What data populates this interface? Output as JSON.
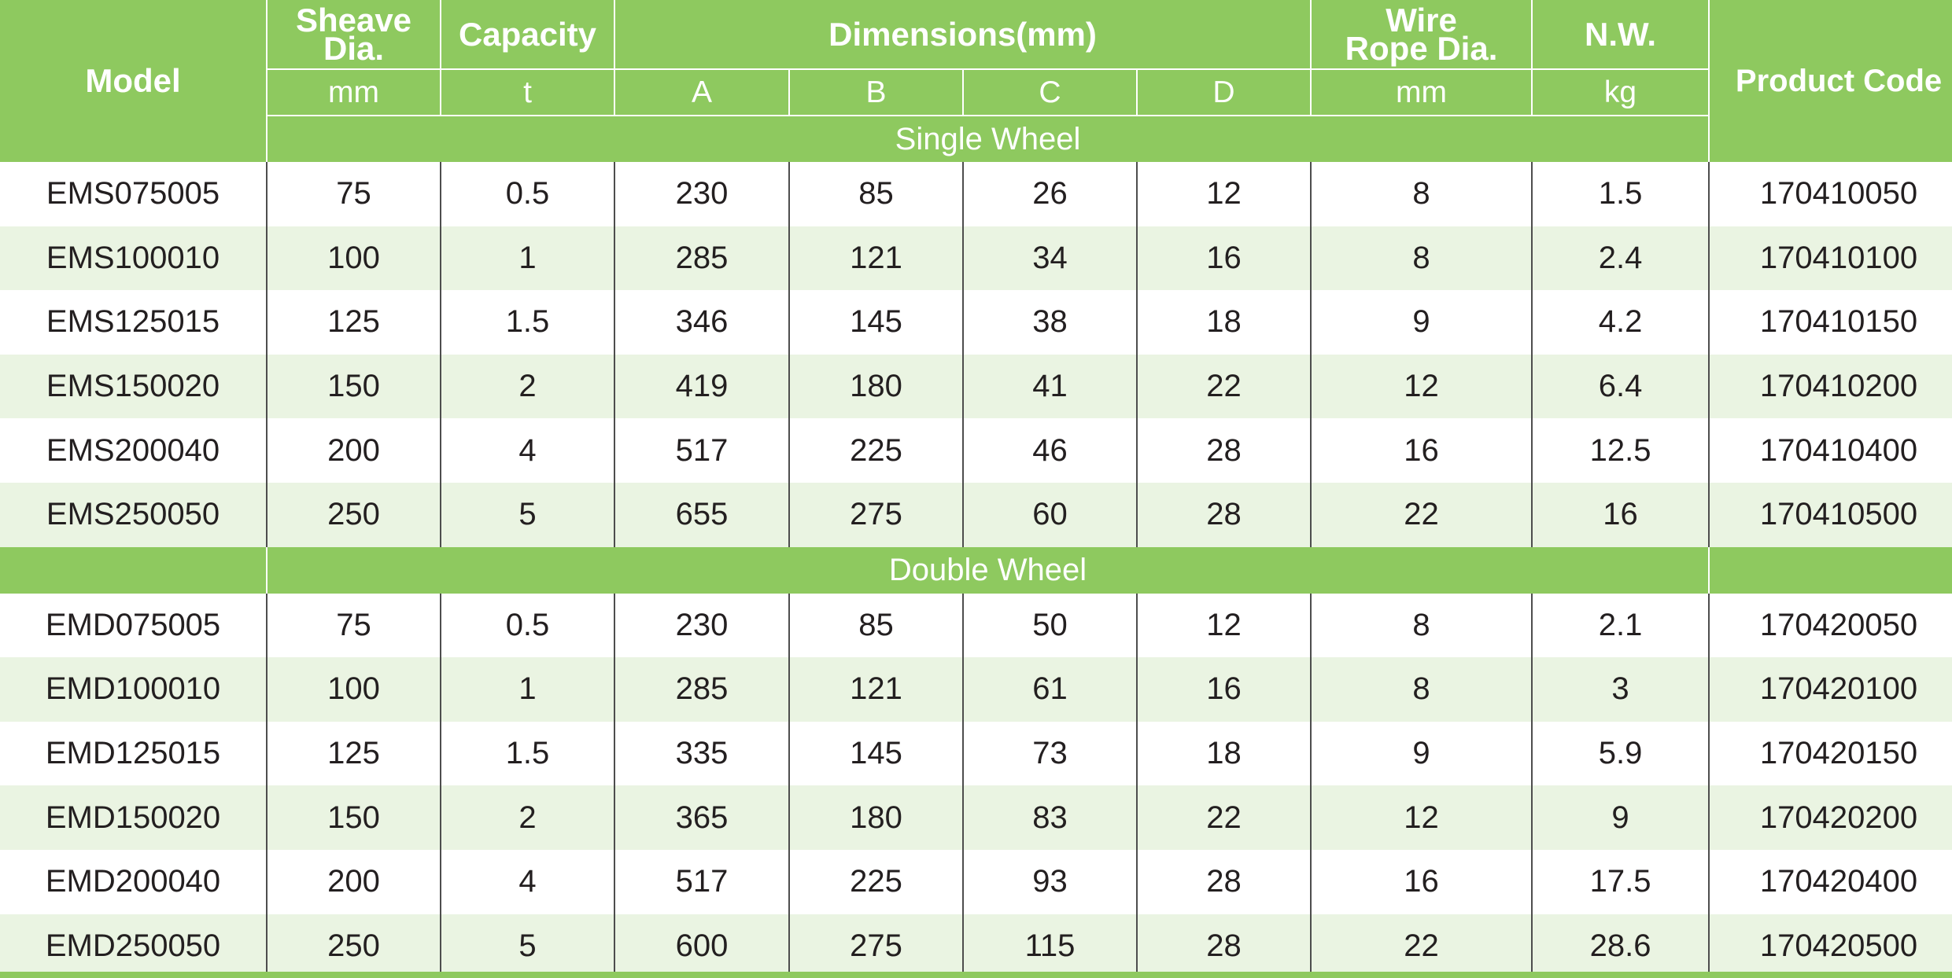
{
  "header": {
    "model": "Model",
    "sheave_top": "Sheave",
    "sheave_bottom": "Dia.",
    "capacity": "Capacity",
    "dimensions": "Dimensions(mm)",
    "wire_top": "Wire",
    "wire_bottom": "Rope Dia.",
    "nw": "N.W.",
    "product_code": "Product Code",
    "units": {
      "sheave": "mm",
      "capacity": "t",
      "a": "A",
      "b": "B",
      "c": "C",
      "d": "D",
      "wire": "mm",
      "nw": "kg"
    }
  },
  "sections": [
    {
      "title": "Single Wheel",
      "rows": [
        [
          "EMS075005",
          "75",
          "0.5",
          "230",
          "85",
          "26",
          "12",
          "8",
          "1.5",
          "170410050"
        ],
        [
          "EMS100010",
          "100",
          "1",
          "285",
          "121",
          "34",
          "16",
          "8",
          "2.4",
          "170410100"
        ],
        [
          "EMS125015",
          "125",
          "1.5",
          "346",
          "145",
          "38",
          "18",
          "9",
          "4.2",
          "170410150"
        ],
        [
          "EMS150020",
          "150",
          "2",
          "419",
          "180",
          "41",
          "22",
          "12",
          "6.4",
          "170410200"
        ],
        [
          "EMS200040",
          "200",
          "4",
          "517",
          "225",
          "46",
          "28",
          "16",
          "12.5",
          "170410400"
        ],
        [
          "EMS250050",
          "250",
          "5",
          "655",
          "275",
          "60",
          "28",
          "22",
          "16",
          "170410500"
        ]
      ]
    },
    {
      "title": "Double Wheel",
      "rows": [
        [
          "EMD075005",
          "75",
          "0.5",
          "230",
          "85",
          "50",
          "12",
          "8",
          "2.1",
          "170420050"
        ],
        [
          "EMD100010",
          "100",
          "1",
          "285",
          "121",
          "61",
          "16",
          "8",
          "3",
          "170420100"
        ],
        [
          "EMD125015",
          "125",
          "1.5",
          "335",
          "145",
          "73",
          "18",
          "9",
          "5.9",
          "170420150"
        ],
        [
          "EMD150020",
          "150",
          "2",
          "365",
          "180",
          "83",
          "22",
          "12",
          "9",
          "170420200"
        ],
        [
          "EMD200040",
          "200",
          "4",
          "517",
          "225",
          "93",
          "28",
          "16",
          "17.5",
          "170420400"
        ],
        [
          "EMD250050",
          "250",
          "5",
          "600",
          "275",
          "115",
          "28",
          "22",
          "28.6",
          "170420500"
        ]
      ]
    }
  ],
  "colors": {
    "header_green": "#8ec95f",
    "alt_row": "#eaf4e2",
    "text": "#231f20"
  }
}
